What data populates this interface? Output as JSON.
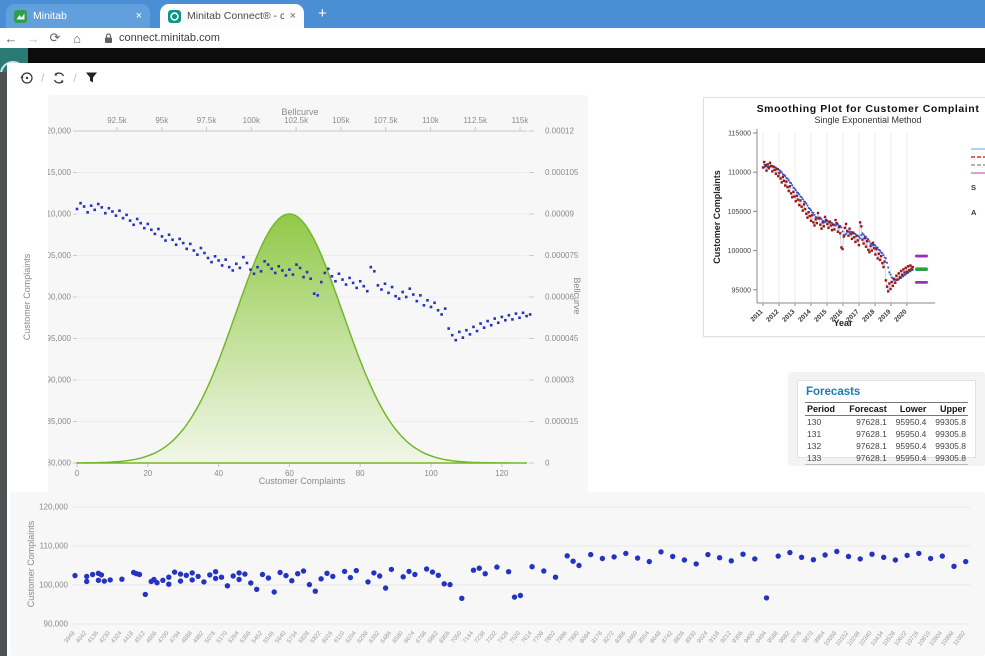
{
  "browser": {
    "tabs": [
      {
        "title": "Minitab"
      },
      {
        "title": "Minitab Connect® - connect.min"
      }
    ],
    "new_tab_label": "+",
    "url": "connect.minitab.com"
  },
  "actions": {
    "separator": "/"
  },
  "colors": {
    "tabbar": "#4a8fd4",
    "app_topbar": "#0c0c0c",
    "logo_teal": "#2a7a76",
    "chart_bg": "#f7f7f8",
    "scatter_blue": "#2433c0",
    "bell_green_stroke": "#74b62c",
    "bell_green_top": "#8cc63f",
    "bell_green_bottom": "#f0f7e6",
    "actual_red": "#a31515",
    "fit_blue": "#2d4fd0",
    "conn_line": "#b9cfe4",
    "forecast_green": "#2f9e44",
    "pi_purple": "#9b30b5",
    "forecasts_title_blue": "#1b7eb4"
  },
  "chart_data": [
    {
      "id": "bellcurve_scatter",
      "type": "scatter",
      "top_axis_title": "Bellcurve",
      "top_axis_ticks": [
        "92.5k",
        "95k",
        "97.5k",
        "100k",
        "102.5k",
        "105k",
        "107.5k",
        "110k",
        "112.5k",
        "115k"
      ],
      "xlabel": "Customer Complaints",
      "bottom_ticks": [
        "0",
        "20",
        "40",
        "60",
        "80",
        "100",
        "120"
      ],
      "ylabel_left": "Customer Complaints",
      "left_ticks": [
        "120,000",
        "115,000",
        "110,000",
        "105,000",
        "100,000",
        "95,000",
        "90,000",
        "85,000",
        "80,000"
      ],
      "ylim_left": [
        80000,
        120000
      ],
      "ylabel_right": "Bellcurve",
      "right_ticks": [
        "0.00012",
        "0.000105",
        "0.00009",
        "0.000075",
        "0.00006",
        "0.000045",
        "0.00003",
        "0.000015",
        "0"
      ],
      "ylim_right": [
        0,
        0.00012
      ],
      "grid": "horizontal",
      "bellcurve": {
        "mean": 60,
        "sd": 15,
        "peak": 9e-05
      },
      "x_start": 0,
      "values": [
        110600,
        111300,
        110900,
        110200,
        111000,
        110500,
        111200,
        110800,
        110100,
        110700,
        110300,
        109800,
        110400,
        109500,
        109900,
        109200,
        108700,
        109400,
        108900,
        108300,
        108800,
        108100,
        107600,
        108200,
        107300,
        106800,
        107500,
        106900,
        106300,
        107000,
        106500,
        105800,
        106400,
        105600,
        105100,
        105900,
        105300,
        104700,
        104200,
        104900,
        104400,
        103800,
        104500,
        103600,
        103200,
        104000,
        103500,
        104800,
        104100,
        103300,
        102800,
        103600,
        103100,
        104300,
        103900,
        103400,
        102900,
        103700,
        103200,
        102600,
        103300,
        102700,
        103900,
        103500,
        102400,
        103000,
        102200,
        100400,
        100200,
        101800,
        102900,
        103400,
        102500,
        101900,
        102800,
        102100,
        101500,
        102300,
        101700,
        101100,
        101900,
        101300,
        100700,
        103600,
        103100,
        101400,
        100900,
        101600,
        100500,
        101200,
        100100,
        99800,
        100600,
        100000,
        101000,
        100300,
        99500,
        100200,
        99000,
        99600,
        98800,
        99300,
        98400,
        97900,
        98600,
        96200,
        95400,
        94800,
        95800,
        95100,
        96000,
        95500,
        96400,
        95900,
        96800,
        96300,
        97100,
        96600,
        97400,
        96900,
        97600,
        97200,
        97800,
        97300,
        98000,
        97500,
        98100,
        97700,
        97900
      ]
    },
    {
      "id": "smoothing_plot",
      "type": "line",
      "title": "Smoothing Plot for Customer Complaint",
      "subtitle": "Single Exponential Method",
      "xlabel": "Year",
      "ylabel": "Customer Complaints",
      "x_ticks": [
        "2011",
        "2012",
        "2013",
        "2014",
        "2015",
        "2016",
        "2017",
        "2018",
        "2019",
        "2020"
      ],
      "y_ticks": [
        "115000",
        "110000",
        "105000",
        "100000",
        "95000"
      ],
      "ylim": [
        93500,
        115000
      ],
      "series_note": "same monthly series as bellcurve_scatter.values; fits = single exponential smoothing",
      "legend_partial_labels": [
        "S",
        "A"
      ],
      "forecast": {
        "value": 97628.1,
        "lower": 95950.4,
        "upper": 99305.8
      }
    },
    {
      "id": "complaints_index_scatter",
      "type": "scatter",
      "ylabel": "Customer Complaints",
      "y_ticks": [
        "120,000",
        "110,000",
        "100,000",
        "90,000"
      ],
      "ylim": [
        90000,
        120000
      ],
      "grid": "horizontal",
      "x_labels": [
        "3948",
        "4042",
        "4136",
        "4230",
        "4324",
        "4418",
        "4512",
        "4606",
        "4700",
        "4794",
        "4888",
        "4982",
        "5076",
        "5170",
        "5264",
        "5358",
        "5452",
        "5546",
        "5640",
        "5734",
        "5828",
        "5922",
        "6016",
        "6110",
        "6204",
        "6298",
        "6392",
        "6486",
        "6580",
        "6674",
        "6768",
        "6862",
        "6956",
        "7050",
        "7144",
        "7238",
        "7332",
        "7426",
        "7520",
        "7614",
        "7708",
        "7802",
        "7896",
        "7990",
        "8084",
        "8178",
        "8272",
        "8366",
        "8460",
        "8554",
        "8648",
        "8742",
        "8836",
        "8930",
        "9024",
        "9118",
        "9212",
        "9306",
        "9400",
        "9494",
        "9588",
        "9682",
        "9776",
        "9870",
        "9964",
        "10058",
        "10152",
        "10246",
        "10340",
        "10434",
        "10528",
        "10622",
        "10716",
        "10810",
        "10904",
        "10998",
        "11092"
      ],
      "points": [
        [
          3948,
          102400
        ],
        [
          4042,
          100900
        ],
        [
          4042,
          102200
        ],
        [
          4089,
          102700
        ],
        [
          4136,
          103000
        ],
        [
          4136,
          101200
        ],
        [
          4160,
          102600
        ],
        [
          4183,
          101000
        ],
        [
          4230,
          101300
        ],
        [
          4324,
          101500
        ],
        [
          4418,
          103200
        ],
        [
          4441,
          102900
        ],
        [
          4465,
          102700
        ],
        [
          4512,
          97600
        ],
        [
          4559,
          100900
        ],
        [
          4582,
          101400
        ],
        [
          4606,
          100600
        ],
        [
          4653,
          101200
        ],
        [
          4700,
          100200
        ],
        [
          4700,
          102000
        ],
        [
          4747,
          103300
        ],
        [
          4794,
          102800
        ],
        [
          4794,
          101000
        ],
        [
          4841,
          102500
        ],
        [
          4888,
          101300
        ],
        [
          4888,
          103100
        ],
        [
          4935,
          102200
        ],
        [
          4982,
          100800
        ],
        [
          5029,
          102600
        ],
        [
          5076,
          101700
        ],
        [
          5076,
          103400
        ],
        [
          5123,
          102000
        ],
        [
          5170,
          99800
        ],
        [
          5217,
          102300
        ],
        [
          5264,
          103100
        ],
        [
          5264,
          101400
        ],
        [
          5311,
          102800
        ],
        [
          5358,
          100500
        ],
        [
          5405,
          98900
        ],
        [
          5452,
          102700
        ],
        [
          5499,
          101800
        ],
        [
          5546,
          98200
        ],
        [
          5593,
          103200
        ],
        [
          5640,
          102400
        ],
        [
          5687,
          101100
        ],
        [
          5734,
          102900
        ],
        [
          5781,
          103600
        ],
        [
          5828,
          100100
        ],
        [
          5875,
          98400
        ],
        [
          5922,
          101600
        ],
        [
          5969,
          103000
        ],
        [
          6016,
          102200
        ],
        [
          6110,
          103500
        ],
        [
          6157,
          101900
        ],
        [
          6204,
          103700
        ],
        [
          6298,
          100800
        ],
        [
          6345,
          103100
        ],
        [
          6392,
          102300
        ],
        [
          6439,
          99200
        ],
        [
          6486,
          104000
        ],
        [
          6580,
          102100
        ],
        [
          6627,
          103500
        ],
        [
          6674,
          102700
        ],
        [
          6768,
          104100
        ],
        [
          6815,
          103300
        ],
        [
          6862,
          102500
        ],
        [
          6909,
          100300
        ],
        [
          6956,
          100100
        ],
        [
          7050,
          96600
        ],
        [
          7144,
          103800
        ],
        [
          7191,
          104300
        ],
        [
          7238,
          102900
        ],
        [
          7332,
          104600
        ],
        [
          7426,
          103400
        ],
        [
          7473,
          96900
        ],
        [
          7520,
          97300
        ],
        [
          7614,
          104700
        ],
        [
          7708,
          103600
        ],
        [
          7802,
          102000
        ],
        [
          7896,
          107500
        ],
        [
          7943,
          106100
        ],
        [
          7990,
          105000
        ],
        [
          8084,
          107800
        ],
        [
          8178,
          106800
        ],
        [
          8272,
          107200
        ],
        [
          8366,
          108100
        ],
        [
          8460,
          106900
        ],
        [
          8554,
          106000
        ],
        [
          8648,
          108500
        ],
        [
          8742,
          107300
        ],
        [
          8836,
          106400
        ],
        [
          8930,
          105400
        ],
        [
          9024,
          107800
        ],
        [
          9118,
          107000
        ],
        [
          9212,
          106200
        ],
        [
          9306,
          107900
        ],
        [
          9400,
          106700
        ],
        [
          9494,
          96700
        ],
        [
          9588,
          107400
        ],
        [
          9682,
          108300
        ],
        [
          9776,
          107100
        ],
        [
          9870,
          106500
        ],
        [
          9964,
          107700
        ],
        [
          10058,
          108600
        ],
        [
          10152,
          107300
        ],
        [
          10246,
          106700
        ],
        [
          10340,
          107900
        ],
        [
          10434,
          107100
        ],
        [
          10528,
          106400
        ],
        [
          10622,
          107600
        ],
        [
          10716,
          108100
        ],
        [
          10810,
          106800
        ],
        [
          10904,
          107400
        ],
        [
          10998,
          104800
        ],
        [
          11092,
          106000
        ]
      ]
    },
    {
      "id": "forecasts_table",
      "type": "table",
      "title": "Forecasts",
      "columns": [
        "Period",
        "Forecast",
        "Lower",
        "Upper"
      ],
      "rows": [
        [
          "130",
          "97628.1",
          "95950.4",
          "99305.8"
        ],
        [
          "131",
          "97628.1",
          "95950.4",
          "99305.8"
        ],
        [
          "132",
          "97628.1",
          "95950.4",
          "99305.8"
        ],
        [
          "133",
          "97628.1",
          "95950.4",
          "99305.8"
        ]
      ]
    }
  ]
}
